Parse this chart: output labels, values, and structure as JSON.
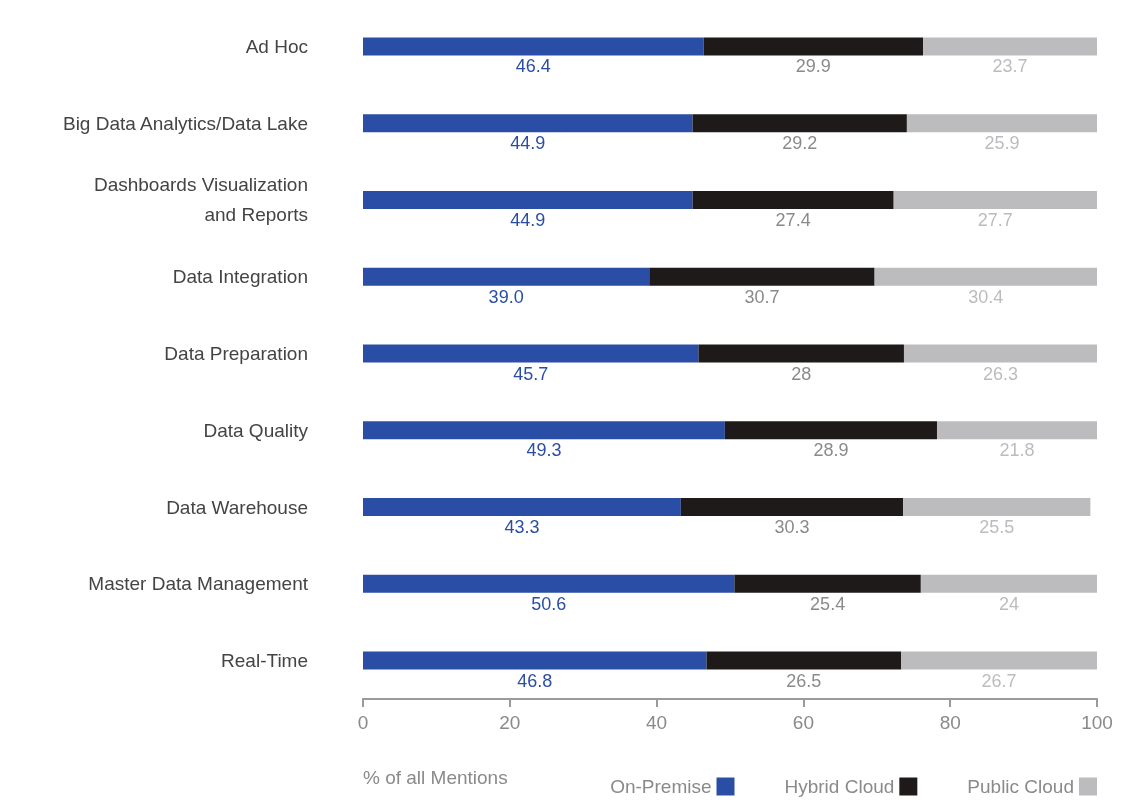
{
  "chart_data": {
    "type": "bar",
    "orientation": "horizontal",
    "stacked": true,
    "xlabel": "% of all Mentions",
    "categories": [
      "Ad Hoc",
      "Big Data Analytics/Data Lake",
      "Dashboards Visualization\nand Reports",
      "Data Integration",
      "Data Preparation",
      "Data Quality",
      "Data Warehouse",
      "Master Data Management",
      "Real-Time"
    ],
    "series": [
      {
        "name": "On-Premise",
        "color": "#2a4ea6",
        "values": [
          46.4,
          44.9,
          44.9,
          39.0,
          45.7,
          49.3,
          43.3,
          50.6,
          46.8
        ],
        "value_labels": [
          "46.4",
          "44.9",
          "44.9",
          "39.0",
          "45.7",
          "49.3",
          "43.3",
          "50.6",
          "46.8"
        ]
      },
      {
        "name": "Hybrid Cloud",
        "color": "#1e1a1a",
        "values": [
          29.9,
          29.2,
          27.4,
          30.7,
          28,
          28.9,
          30.3,
          25.4,
          26.5
        ],
        "value_labels": [
          "29.9",
          "29.2",
          "27.4",
          "30.7",
          "28",
          "28.9",
          "30.3",
          "25.4",
          "26.5"
        ]
      },
      {
        "name": "Public Cloud",
        "color": "#bcbcbe",
        "values": [
          23.7,
          25.9,
          27.7,
          30.4,
          26.3,
          21.8,
          25.5,
          24,
          26.7
        ],
        "value_labels": [
          "23.7",
          "25.9",
          "27.7",
          "30.4",
          "26.3",
          "21.8",
          "25.5",
          "24",
          "26.7"
        ]
      }
    ],
    "xlim": [
      0,
      100
    ],
    "xticks": [
      0,
      20,
      40,
      60,
      80,
      100
    ],
    "grid": false,
    "legend": "bottom right"
  }
}
